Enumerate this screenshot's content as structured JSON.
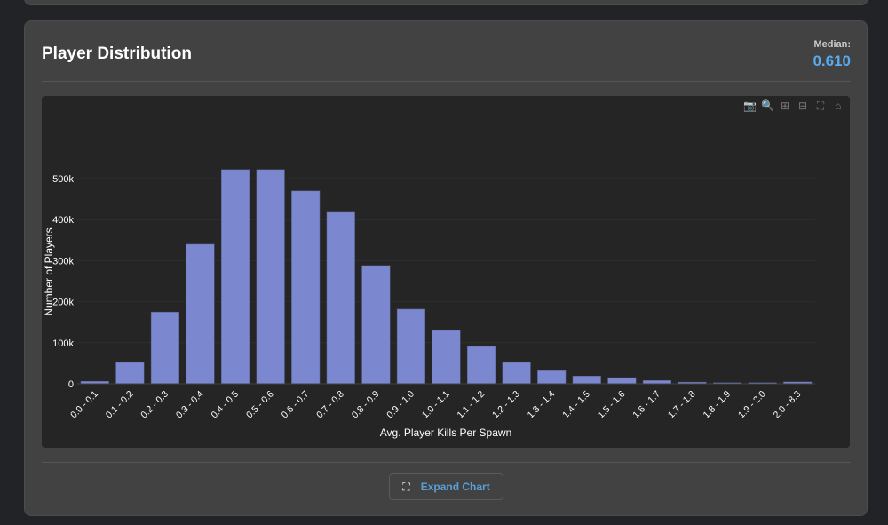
{
  "card": {
    "title": "Player Distribution",
    "median_label": "Median:",
    "median_value": "0.610"
  },
  "modebar": [
    {
      "icon": "camera-icon",
      "glyph": "📷"
    },
    {
      "icon": "zoom-icon",
      "glyph": "🔍"
    },
    {
      "icon": "zoom-in-icon",
      "glyph": "⊞"
    },
    {
      "icon": "zoom-out-icon",
      "glyph": "⊟"
    },
    {
      "icon": "autoscale-icon",
      "glyph": "⛶"
    },
    {
      "icon": "home-icon",
      "glyph": "⌂"
    }
  ],
  "expand_button": {
    "label": "Expand Chart",
    "icon": "expand-icon"
  },
  "colors": {
    "bar": "#7b88cf",
    "accent": "#5aaaf0"
  },
  "chart_data": {
    "type": "bar",
    "xlabel": "Avg. Player Kills Per Spawn",
    "ylabel": "Number of Players",
    "categories": [
      "0.0 - 0.1",
      "0.1 - 0.2",
      "0.2 - 0.3",
      "0.3 - 0.4",
      "0.4 - 0.5",
      "0.5 - 0.6",
      "0.6 - 0.7",
      "0.7 - 0.8",
      "0.8 - 0.9",
      "0.9 - 1.0",
      "1.0 - 1.1",
      "1.1 - 1.2",
      "1.2 - 1.3",
      "1.3 - 1.4",
      "1.4 - 1.5",
      "1.5 - 1.6",
      "1.6 - 1.7",
      "1.7 - 1.8",
      "1.8 - 1.9",
      "1.9 - 2.0",
      "2.0 - 8.3"
    ],
    "values": [
      6000,
      52000,
      175000,
      340000,
      522000,
      522000,
      470000,
      418000,
      288000,
      182000,
      130000,
      91000,
      52000,
      32000,
      19000,
      15000,
      8000,
      4000,
      2500,
      2500,
      4500
    ],
    "yticks": [
      0,
      100000,
      200000,
      300000,
      400000,
      500000
    ],
    "ytick_labels": [
      "0",
      "100k",
      "200k",
      "300k",
      "400k",
      "500k"
    ],
    "ylim": [
      0,
      650000
    ],
    "grid": true
  }
}
